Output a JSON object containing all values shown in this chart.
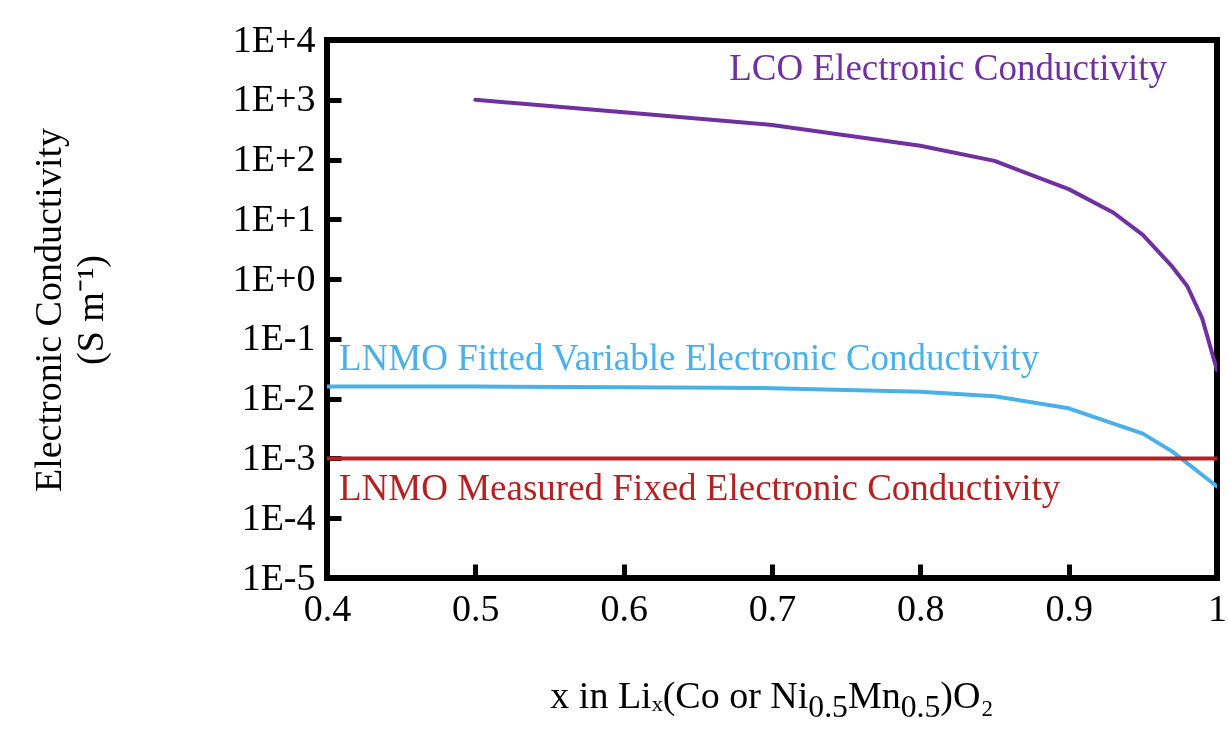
{
  "chart_data": {
    "type": "line",
    "xlabel": "x in Liₓ(Co or Ni$_{0.5}$Mn$_{0.5}$)O₂",
    "ylabel": "Electronic Conductivity\n(S m⁻¹)",
    "log": "y",
    "xlim": [
      0.4,
      1
    ],
    "xticks": [
      0.4,
      0.5,
      0.6,
      0.7,
      0.8,
      0.9,
      1
    ],
    "ylim": [
      1e-05,
      10000
    ],
    "yticks": [
      {
        "value": 1e-05,
        "label": "1E-5"
      },
      {
        "value": 0.0001,
        "label": "1E-4"
      },
      {
        "value": 0.001,
        "label": "1E-3"
      },
      {
        "value": 0.01,
        "label": "1E-2"
      },
      {
        "value": 0.1,
        "label": "1E-1"
      },
      {
        "value": 1,
        "label": "1E+0"
      },
      {
        "value": 10,
        "label": "1E+1"
      },
      {
        "value": 100,
        "label": "1E+2"
      },
      {
        "value": 1000,
        "label": "1E+3"
      },
      {
        "value": 10000,
        "label": "1E+4"
      }
    ],
    "series": [
      {
        "name": "LCO Electronic Conductivity",
        "color": "#7030a0",
        "x": [
          0.5,
          0.6,
          0.7,
          0.8,
          0.85,
          0.9,
          0.93,
          0.95,
          0.97,
          0.98,
          0.99,
          1.0
        ],
        "values": [
          1000,
          620,
          380,
          170,
          95,
          32,
          13,
          5.5,
          1.6,
          0.76,
          0.22,
          0.03
        ]
      },
      {
        "name": "LNMO Fitted Variable Electronic Conductivity",
        "color": "#4bb0e8",
        "x": [
          0.4,
          0.5,
          0.6,
          0.7,
          0.8,
          0.85,
          0.9,
          0.95,
          0.97,
          1.0
        ],
        "values": [
          0.016,
          0.016,
          0.0155,
          0.015,
          0.013,
          0.011,
          0.0069,
          0.0026,
          0.0013,
          0.00034
        ]
      },
      {
        "name": "LNMO Measured Fixed Electronic Conductivity",
        "color": "#b22222",
        "x": [
          0.4,
          1.0
        ],
        "values": [
          0.001,
          0.001
        ]
      }
    ]
  }
}
